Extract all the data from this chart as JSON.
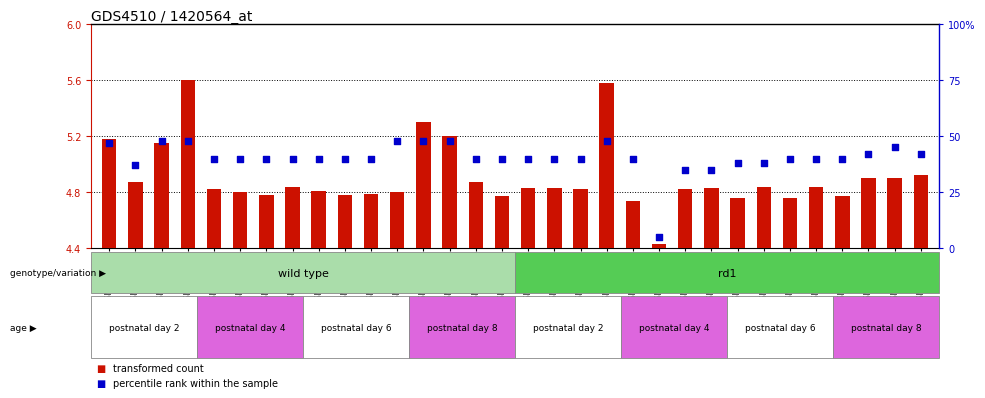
{
  "title": "GDS4510 / 1420564_at",
  "samples": [
    "GSM1024803",
    "GSM1024804",
    "GSM1024805",
    "GSM1024806",
    "GSM1024807",
    "GSM1024808",
    "GSM1024809",
    "GSM1024810",
    "GSM1024811",
    "GSM1024812",
    "GSM1024813",
    "GSM1024814",
    "GSM1024815",
    "GSM1024816",
    "GSM1024817",
    "GSM1024818",
    "GSM1024819",
    "GSM1024820",
    "GSM1024821",
    "GSM1024822",
    "GSM1024823",
    "GSM1024824",
    "GSM1024825",
    "GSM1024826",
    "GSM1024827",
    "GSM1024828",
    "GSM1024829",
    "GSM1024830",
    "GSM1024831",
    "GSM1024832",
    "GSM1024833",
    "GSM1024834"
  ],
  "bar_values": [
    5.18,
    4.87,
    5.15,
    5.6,
    4.82,
    4.8,
    4.78,
    4.84,
    4.81,
    4.78,
    4.79,
    4.8,
    5.3,
    5.2,
    4.87,
    4.77,
    4.83,
    4.83,
    4.82,
    5.58,
    4.74,
    4.43,
    4.82,
    4.83,
    4.76,
    4.84,
    4.76,
    4.84,
    4.77,
    4.9,
    4.9,
    4.92
  ],
  "percentile_values": [
    47,
    37,
    48,
    48,
    40,
    40,
    40,
    40,
    40,
    40,
    40,
    48,
    48,
    48,
    40,
    40,
    40,
    40,
    40,
    48,
    40,
    5,
    35,
    35,
    38,
    38,
    40,
    40,
    40,
    42,
    45,
    42
  ],
  "ymin": 4.4,
  "ymax": 6.0,
  "yticks": [
    4.4,
    4.8,
    5.2,
    5.6,
    6.0
  ],
  "right_yticks": [
    0,
    25,
    50,
    75,
    100
  ],
  "right_ytick_labels": [
    "0",
    "25",
    "50",
    "75",
    "100%"
  ],
  "bar_color": "#cc1100",
  "dot_color": "#0000cc",
  "bar_bottom": 4.4,
  "genotype_groups": [
    {
      "label": "wild type",
      "start": 0,
      "end": 16,
      "color": "#aaddaa"
    },
    {
      "label": "rd1",
      "start": 16,
      "end": 32,
      "color": "#55cc55"
    }
  ],
  "age_groups": [
    {
      "label": "postnatal day 2",
      "start": 0,
      "end": 4,
      "color": "#ffffff"
    },
    {
      "label": "postnatal day 4",
      "start": 4,
      "end": 8,
      "color": "#dd66dd"
    },
    {
      "label": "postnatal day 6",
      "start": 8,
      "end": 12,
      "color": "#ffffff"
    },
    {
      "label": "postnatal day 8",
      "start": 12,
      "end": 16,
      "color": "#dd66dd"
    },
    {
      "label": "postnatal day 2",
      "start": 16,
      "end": 20,
      "color": "#ffffff"
    },
    {
      "label": "postnatal day 4",
      "start": 20,
      "end": 24,
      "color": "#dd66dd"
    },
    {
      "label": "postnatal day 6",
      "start": 24,
      "end": 28,
      "color": "#ffffff"
    },
    {
      "label": "postnatal day 8",
      "start": 28,
      "end": 32,
      "color": "#dd66dd"
    }
  ],
  "legend_items": [
    {
      "label": "transformed count",
      "color": "#cc1100"
    },
    {
      "label": "percentile rank within the sample",
      "color": "#0000cc"
    }
  ],
  "left_axis_color": "#cc1100",
  "right_axis_color": "#0000cc",
  "tick_fontsize": 7,
  "title_fontsize": 10,
  "bar_width": 0.55
}
